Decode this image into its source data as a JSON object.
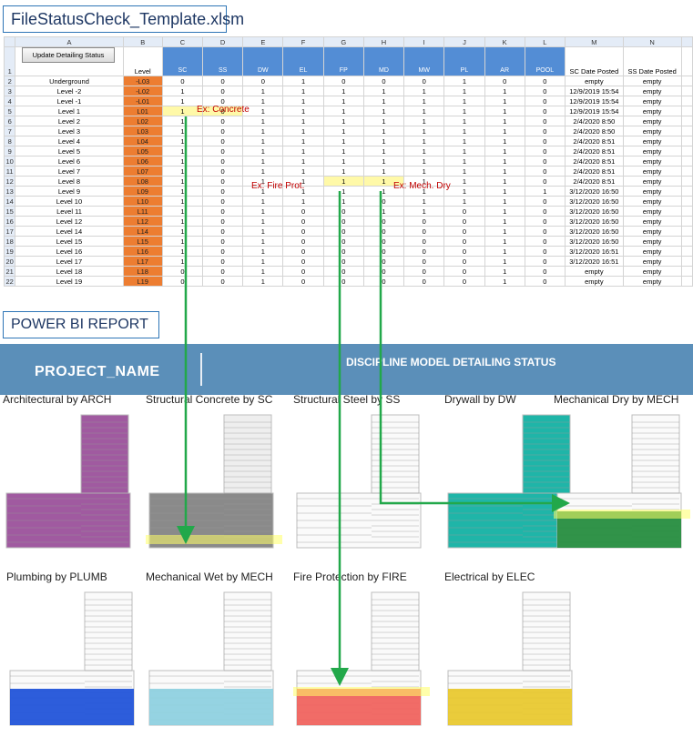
{
  "file_title": "FileStatusCheck_Template.xlsm",
  "report_title": "POWER BI REPORT",
  "sheet": {
    "update_button": "Update Detailing Status",
    "col_letters": [
      "A",
      "B",
      "C",
      "D",
      "E",
      "F",
      "G",
      "H",
      "I",
      "J",
      "K",
      "L",
      "M",
      "N"
    ],
    "level_header": "Level",
    "disciplines": [
      "SC",
      "SS",
      "DW",
      "EL",
      "FP",
      "MD",
      "MW",
      "PL",
      "AR",
      "POOL"
    ],
    "date_headers": [
      "SC Date Posted",
      "SS Date Posted"
    ],
    "rows": [
      {
        "n": "2",
        "name": "Underground",
        "code": "-L03",
        "v": [
          "0",
          "0",
          "0",
          "1",
          "0",
          "0",
          "0",
          "1",
          "0",
          "0"
        ],
        "d1": "empty",
        "d2": "empty"
      },
      {
        "n": "3",
        "name": "Level -2",
        "code": "-L02",
        "v": [
          "1",
          "0",
          "1",
          "1",
          "1",
          "1",
          "1",
          "1",
          "1",
          "0"
        ],
        "d1": "12/9/2019 15:54",
        "d2": "empty"
      },
      {
        "n": "4",
        "name": "Level -1",
        "code": "-L01",
        "v": [
          "1",
          "0",
          "1",
          "1",
          "1",
          "1",
          "1",
          "1",
          "1",
          "0"
        ],
        "d1": "12/9/2019 15:54",
        "d2": "empty"
      },
      {
        "n": "5",
        "name": "Level 1",
        "code": "L01",
        "v": [
          "1",
          "0",
          "1",
          "1",
          "1",
          "1",
          "1",
          "1",
          "1",
          "0"
        ],
        "d1": "12/9/2019 15:54",
        "d2": "empty"
      },
      {
        "n": "6",
        "name": "Level 2",
        "code": "L02",
        "v": [
          "1",
          "0",
          "1",
          "1",
          "1",
          "1",
          "1",
          "1",
          "1",
          "0"
        ],
        "d1": "2/4/2020 8:50",
        "d2": "empty"
      },
      {
        "n": "7",
        "name": "Level 3",
        "code": "L03",
        "v": [
          "1",
          "0",
          "1",
          "1",
          "1",
          "1",
          "1",
          "1",
          "1",
          "0"
        ],
        "d1": "2/4/2020 8:50",
        "d2": "empty"
      },
      {
        "n": "8",
        "name": "Level 4",
        "code": "L04",
        "v": [
          "1",
          "0",
          "1",
          "1",
          "1",
          "1",
          "1",
          "1",
          "1",
          "0"
        ],
        "d1": "2/4/2020 8:51",
        "d2": "empty"
      },
      {
        "n": "9",
        "name": "Level 5",
        "code": "L05",
        "v": [
          "1",
          "0",
          "1",
          "1",
          "1",
          "1",
          "1",
          "1",
          "1",
          "0"
        ],
        "d1": "2/4/2020 8:51",
        "d2": "empty"
      },
      {
        "n": "10",
        "name": "Level 6",
        "code": "L06",
        "v": [
          "1",
          "0",
          "1",
          "1",
          "1",
          "1",
          "1",
          "1",
          "1",
          "0"
        ],
        "d1": "2/4/2020 8:51",
        "d2": "empty"
      },
      {
        "n": "11",
        "name": "Level 7",
        "code": "L07",
        "v": [
          "1",
          "0",
          "1",
          "1",
          "1",
          "1",
          "1",
          "1",
          "1",
          "0"
        ],
        "d1": "2/4/2020 8:51",
        "d2": "empty"
      },
      {
        "n": "12",
        "name": "Level 8",
        "code": "L08",
        "v": [
          "1",
          "0",
          "1",
          "1",
          "1",
          "1",
          "1",
          "1",
          "1",
          "0"
        ],
        "d1": "2/4/2020 8:51",
        "d2": "empty"
      },
      {
        "n": "13",
        "name": "Level 9",
        "code": "L09",
        "v": [
          "1",
          "0",
          "1",
          "1",
          "1",
          "1",
          "1",
          "1",
          "1",
          "1"
        ],
        "d1": "3/12/2020 16:50",
        "d2": "empty"
      },
      {
        "n": "14",
        "name": "Level 10",
        "code": "L10",
        "v": [
          "1",
          "0",
          "1",
          "1",
          "1",
          "0",
          "1",
          "1",
          "1",
          "0"
        ],
        "d1": "3/12/2020 16:50",
        "d2": "empty"
      },
      {
        "n": "15",
        "name": "Level 11",
        "code": "L11",
        "v": [
          "1",
          "0",
          "1",
          "0",
          "0",
          "1",
          "1",
          "0",
          "1",
          "0"
        ],
        "d1": "3/12/2020 16:50",
        "d2": "empty"
      },
      {
        "n": "16",
        "name": "Level 12",
        "code": "L12",
        "v": [
          "1",
          "0",
          "1",
          "0",
          "0",
          "0",
          "0",
          "0",
          "1",
          "0"
        ],
        "d1": "3/12/2020 16:50",
        "d2": "empty"
      },
      {
        "n": "17",
        "name": "Level 14",
        "code": "L14",
        "v": [
          "1",
          "0",
          "1",
          "0",
          "0",
          "0",
          "0",
          "0",
          "1",
          "0"
        ],
        "d1": "3/12/2020 16:50",
        "d2": "empty"
      },
      {
        "n": "18",
        "name": "Level 15",
        "code": "L15",
        "v": [
          "1",
          "0",
          "1",
          "0",
          "0",
          "0",
          "0",
          "0",
          "1",
          "0"
        ],
        "d1": "3/12/2020 16:50",
        "d2": "empty"
      },
      {
        "n": "19",
        "name": "Level 16",
        "code": "L16",
        "v": [
          "1",
          "0",
          "1",
          "0",
          "0",
          "0",
          "0",
          "0",
          "1",
          "0"
        ],
        "d1": "3/12/2020 16:51",
        "d2": "empty"
      },
      {
        "n": "20",
        "name": "Level 17",
        "code": "L17",
        "v": [
          "1",
          "0",
          "1",
          "0",
          "0",
          "0",
          "0",
          "0",
          "1",
          "0"
        ],
        "d1": "3/12/2020 16:51",
        "d2": "empty"
      },
      {
        "n": "21",
        "name": "Level 18",
        "code": "L18",
        "v": [
          "0",
          "0",
          "1",
          "0",
          "0",
          "0",
          "0",
          "0",
          "1",
          "0"
        ],
        "d1": "empty",
        "d2": "empty"
      },
      {
        "n": "22",
        "name": "Level 19",
        "code": "L19",
        "v": [
          "0",
          "0",
          "1",
          "0",
          "0",
          "0",
          "0",
          "0",
          "1",
          "0"
        ],
        "d1": "empty",
        "d2": "empty"
      }
    ],
    "annotations": {
      "concrete": "Ex: Concrete",
      "fire": "Ex: Fire Prot.",
      "mech": "Ex: Mech. Dry"
    }
  },
  "banner": {
    "project": "PROJECT_NAME",
    "status": "DISCIPLINE MODEL DETAILING STATUS"
  },
  "panels": [
    {
      "label": "Architectural by ARCH",
      "color": "#a05aa0",
      "fill": "full"
    },
    {
      "label": "Structural Concrete by SC",
      "color": "#8a8a8a",
      "fill": "mostly"
    },
    {
      "label": "Structural Steel by SS",
      "color": "#cfcfcf",
      "fill": "none"
    },
    {
      "label": "Drywall by DW",
      "color": "#1fb5a8",
      "fill": "full"
    },
    {
      "label": "Mechanical Dry by MECH",
      "color": "#1f8a3a",
      "fill": "low"
    },
    {
      "label": "Plumbing by PLUMB",
      "color": "#1b4fd8",
      "fill": "low"
    },
    {
      "label": "Mechanical Wet by MECH",
      "color": "#8ccfe0",
      "fill": "low"
    },
    {
      "label": "Fire Protection by FIRE",
      "color": "#f0605a",
      "fill": "low"
    },
    {
      "label": "Electrical by ELEC",
      "color": "#e8c82a",
      "fill": "low"
    }
  ]
}
